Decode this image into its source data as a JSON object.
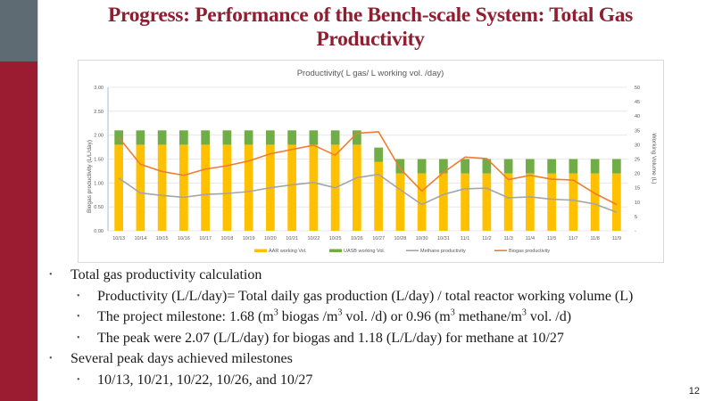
{
  "slide": {
    "title": "Progress: Performance of the Bench-scale System: Total Gas Productivity",
    "page_number": "12",
    "bullets": [
      {
        "level": 1,
        "text": "Total gas productivity calculation"
      },
      {
        "level": 2,
        "text": "Productivity (L/L/day)= Total daily gas production (L/day) / total reactor working volume (L)"
      },
      {
        "level": 2,
        "parts": [
          "The project milestone: 1.68 (m",
          "3",
          " biogas /m",
          "3",
          " vol. /d) or 0.96 (m",
          "3",
          " methane/m",
          "3",
          " vol. /d)"
        ]
      },
      {
        "level": 2,
        "text": "The peak were 2.07 (L/L/day) for biogas and 1.18 (L/L/day) for methane at 10/27"
      },
      {
        "level": 1,
        "text": "Several peak days achieved milestones"
      },
      {
        "level": 2,
        "text": "10/13, 10/21, 10/22, 10/26, and 10/27"
      }
    ]
  },
  "colors": {
    "title": "#8f1e31",
    "sidebar_top": "#5f6b73",
    "sidebar_bottom": "#9b1c31",
    "aar": "#ffc000",
    "uasb": "#70ad47",
    "methane": "#a5a5a5",
    "biogas": "#ed7d31"
  },
  "chart_data": {
    "type": "bar",
    "title": "Productivity( L gas/ L working vol. /day)",
    "xlabel": "",
    "ylabel": "Biogas productivity (L/L/day)",
    "y2label": "Working Volume (L)",
    "ylim": [
      0,
      3
    ],
    "y2lim": [
      0,
      50
    ],
    "yticks": [
      "0.00",
      "0.50",
      "1.00",
      "1.50",
      "2.00",
      "2.50",
      "3.00"
    ],
    "y2ticks": [
      "-",
      "5",
      "10",
      "15",
      "20",
      "25",
      "30",
      "35",
      "40",
      "45",
      "50"
    ],
    "grid": true,
    "legend": "bottom",
    "categories": [
      "10/13",
      "10/14",
      "10/15",
      "10/16",
      "10/17",
      "10/18",
      "10/19",
      "10/20",
      "10/21",
      "10/22",
      "10/25",
      "10/26",
      "10/27",
      "10/28",
      "10/30",
      "10/31",
      "11/1",
      "11/2",
      "11/3",
      "11/4",
      "11/5",
      "11/7",
      "11/8",
      "11/9"
    ],
    "series": [
      {
        "name": "AAR working Vol.",
        "type": "stacked-bar",
        "axis": "right",
        "values": [
          30,
          30,
          30,
          30,
          30,
          30,
          30,
          30,
          30,
          30,
          30,
          30,
          24,
          20,
          20,
          20,
          20,
          20,
          20,
          20,
          20,
          20,
          20,
          20
        ]
      },
      {
        "name": "UASB working Vol.",
        "type": "stacked-bar",
        "axis": "right",
        "values": [
          5,
          5,
          5,
          5,
          5,
          5,
          5,
          5,
          5,
          5,
          5,
          5,
          5,
          5,
          5,
          5,
          5,
          5,
          5,
          5,
          5,
          5,
          5,
          5
        ]
      },
      {
        "name": "Methane productivity",
        "type": "line",
        "axis": "left",
        "values": [
          1.1,
          0.79,
          0.74,
          0.7,
          0.76,
          0.78,
          0.82,
          0.9,
          0.96,
          1.01,
          0.9,
          1.11,
          1.18,
          0.86,
          0.55,
          0.76,
          0.88,
          0.89,
          0.69,
          0.71,
          0.66,
          0.64,
          0.56,
          0.39
        ]
      },
      {
        "name": "Biogas productivity",
        "type": "line",
        "axis": "left",
        "values": [
          1.95,
          1.39,
          1.24,
          1.16,
          1.29,
          1.36,
          1.46,
          1.61,
          1.7,
          1.79,
          1.58,
          2.04,
          2.07,
          1.3,
          0.83,
          1.22,
          1.54,
          1.51,
          1.07,
          1.16,
          1.08,
          1.06,
          0.78,
          0.55
        ]
      }
    ]
  }
}
